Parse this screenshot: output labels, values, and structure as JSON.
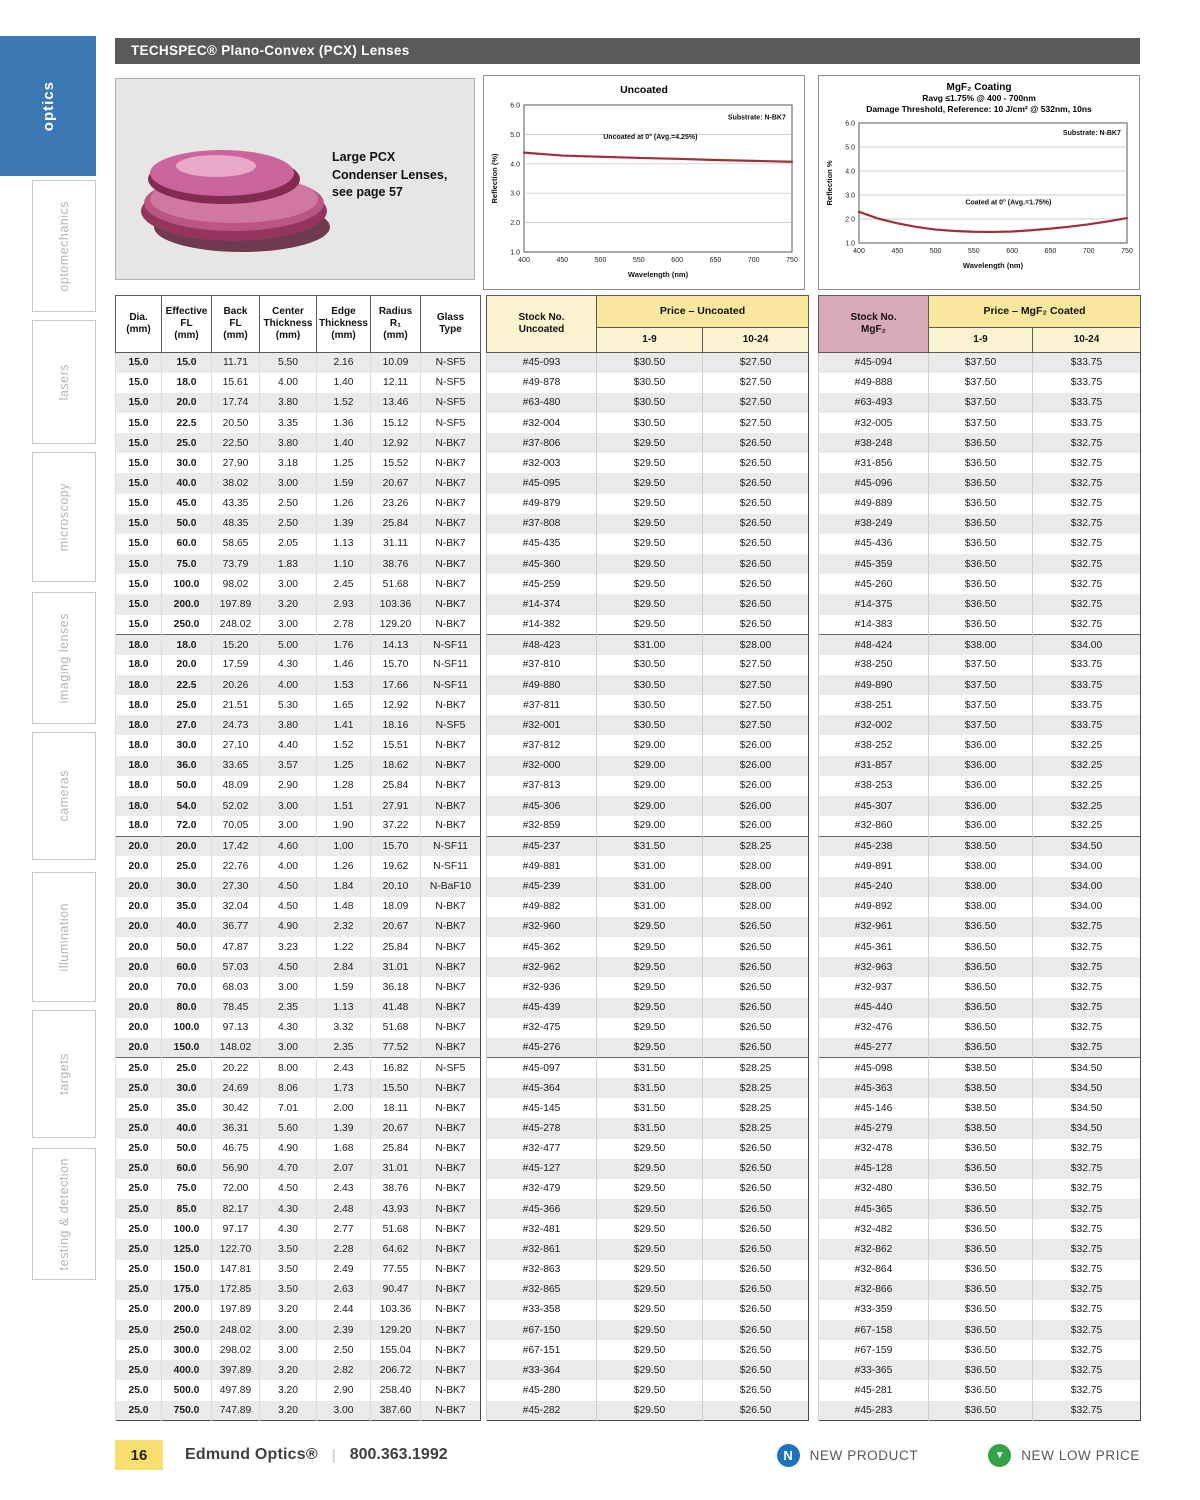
{
  "page": {
    "header_title": "TECHSPEC® Plano-Convex (PCX) Lenses"
  },
  "sidebar": {
    "items": [
      {
        "label": "optics"
      },
      {
        "label": "optomechanics"
      },
      {
        "label": "lasers"
      },
      {
        "label": "microscopy"
      },
      {
        "label": "imaging lenses"
      },
      {
        "label": "cameras"
      },
      {
        "label": "illumination"
      },
      {
        "label": "targets"
      },
      {
        "label": "testing & detection"
      }
    ]
  },
  "promo": {
    "caption": "Large PCX\nCondenser Lenses,\nsee page 57"
  },
  "chart_data": [
    {
      "type": "line",
      "title": "Uncoated",
      "xlabel": "Wavelength (nm)",
      "ylabel": "Reflection (%)",
      "xlim": [
        400,
        750
      ],
      "ylim": [
        1.0,
        6.0
      ],
      "xticks": [
        400,
        450,
        500,
        550,
        600,
        650,
        700,
        750
      ],
      "yticks": [
        1.0,
        2.0,
        3.0,
        4.0,
        5.0,
        6.0
      ],
      "grid": true,
      "line_color": "#9e3039",
      "annotations": [
        {
          "text": "Substrate: N-BK7",
          "x": 742,
          "y": 5.5,
          "anchor": "end"
        },
        {
          "text": "Uncoated at 0°  (Avg.=4.25%)",
          "x": 565,
          "y": 4.85,
          "anchor": "middle"
        }
      ],
      "series": [
        {
          "name": "Uncoated at 0°",
          "x": [
            400,
            450,
            500,
            550,
            600,
            650,
            700,
            750
          ],
          "y": [
            4.38,
            4.28,
            4.24,
            4.2,
            4.17,
            4.13,
            4.1,
            4.07
          ]
        }
      ]
    },
    {
      "type": "line",
      "title": "MgF₂ Coating",
      "subtitle1": "Ravg ≤1.75% @ 400 - 700nm",
      "subtitle2": "Damage Threshold, Reference: 10 J/cm² @ 532nm, 10ns",
      "xlabel": "Wavelength (nm)",
      "ylabel": "Reflection %",
      "xlim": [
        400,
        750
      ],
      "ylim": [
        1.0,
        6.0
      ],
      "xticks": [
        400,
        450,
        500,
        550,
        600,
        650,
        700,
        750
      ],
      "yticks": [
        1.0,
        2.0,
        3.0,
        4.0,
        5.0,
        6.0
      ],
      "grid": true,
      "line_color": "#9e3039",
      "annotations": [
        {
          "text": "Substrate: N-BK7",
          "x": 742,
          "y": 5.5,
          "anchor": "end"
        },
        {
          "text": "Coated at 0°  (Avg.=1.75%)",
          "x": 595,
          "y": 2.6,
          "anchor": "middle"
        }
      ],
      "series": [
        {
          "name": "Coated at 0°",
          "x": [
            400,
            425,
            450,
            475,
            500,
            525,
            550,
            575,
            600,
            625,
            650,
            675,
            700,
            725,
            750
          ],
          "y": [
            2.3,
            2.02,
            1.82,
            1.67,
            1.56,
            1.5,
            1.47,
            1.46,
            1.48,
            1.53,
            1.6,
            1.68,
            1.78,
            1.9,
            2.04
          ]
        }
      ]
    }
  ],
  "table": {
    "spec_headers": [
      "Dia.\n(mm)",
      "Effective\nFL\n(mm)",
      "Back\nFL\n(mm)",
      "Center\nThickness\n(mm)",
      "Edge\nThickness\n(mm)",
      "Radius\nR₁\n(mm)",
      "Glass\nType"
    ],
    "uncoated": {
      "stock_header": "Stock No.\nUncoated",
      "price_header": "Price – Uncoated",
      "qty_headers": [
        "1-9",
        "10-24"
      ]
    },
    "mgf2": {
      "stock_header": "Stock No.\nMgF₂",
      "price_header": "Price – MgF₂ Coated",
      "qty_headers": [
        "1-9",
        "10-24"
      ]
    },
    "group_start_indexes": [
      14,
      24,
      35
    ],
    "rows": [
      [
        "15.0",
        "15.0",
        "11.71",
        "5.50",
        "2.16",
        "10.09",
        "N-SF5",
        "#45-093",
        "$30.50",
        "$27.50",
        "#45-094",
        "$37.50",
        "$33.75"
      ],
      [
        "15.0",
        "18.0",
        "15.61",
        "4.00",
        "1.40",
        "12.11",
        "N-SF5",
        "#49-878",
        "$30.50",
        "$27.50",
        "#49-888",
        "$37.50",
        "$33.75"
      ],
      [
        "15.0",
        "20.0",
        "17.74",
        "3.80",
        "1.52",
        "13.46",
        "N-SF5",
        "#63-480",
        "$30.50",
        "$27.50",
        "#63-493",
        "$37.50",
        "$33.75"
      ],
      [
        "15.0",
        "22.5",
        "20.50",
        "3.35",
        "1.36",
        "15.12",
        "N-SF5",
        "#32-004",
        "$30.50",
        "$27.50",
        "#32-005",
        "$37.50",
        "$33.75"
      ],
      [
        "15.0",
        "25.0",
        "22.50",
        "3.80",
        "1.40",
        "12.92",
        "N-BK7",
        "#37-806",
        "$29.50",
        "$26.50",
        "#38-248",
        "$36.50",
        "$32.75"
      ],
      [
        "15.0",
        "30.0",
        "27.90",
        "3.18",
        "1.25",
        "15.52",
        "N-BK7",
        "#32-003",
        "$29.50",
        "$26.50",
        "#31-856",
        "$36.50",
        "$32.75"
      ],
      [
        "15.0",
        "40.0",
        "38.02",
        "3.00",
        "1.59",
        "20.67",
        "N-BK7",
        "#45-095",
        "$29.50",
        "$26.50",
        "#45-096",
        "$36.50",
        "$32.75"
      ],
      [
        "15.0",
        "45.0",
        "43.35",
        "2.50",
        "1.26",
        "23.26",
        "N-BK7",
        "#49-879",
        "$29.50",
        "$26.50",
        "#49-889",
        "$36.50",
        "$32.75"
      ],
      [
        "15.0",
        "50.0",
        "48.35",
        "2.50",
        "1.39",
        "25.84",
        "N-BK7",
        "#37-808",
        "$29.50",
        "$26.50",
        "#38-249",
        "$36.50",
        "$32.75"
      ],
      [
        "15.0",
        "60.0",
        "58.65",
        "2.05",
        "1.13",
        "31.11",
        "N-BK7",
        "#45-435",
        "$29.50",
        "$26.50",
        "#45-436",
        "$36.50",
        "$32.75"
      ],
      [
        "15.0",
        "75.0",
        "73.79",
        "1.83",
        "1.10",
        "38.76",
        "N-BK7",
        "#45-360",
        "$29.50",
        "$26.50",
        "#45-359",
        "$36.50",
        "$32.75"
      ],
      [
        "15.0",
        "100.0",
        "98.02",
        "3.00",
        "2.45",
        "51.68",
        "N-BK7",
        "#45-259",
        "$29.50",
        "$26.50",
        "#45-260",
        "$36.50",
        "$32.75"
      ],
      [
        "15.0",
        "200.0",
        "197.89",
        "3.20",
        "2.93",
        "103.36",
        "N-BK7",
        "#14-374",
        "$29.50",
        "$26.50",
        "#14-375",
        "$36.50",
        "$32.75"
      ],
      [
        "15.0",
        "250.0",
        "248.02",
        "3.00",
        "2.78",
        "129.20",
        "N-BK7",
        "#14-382",
        "$29.50",
        "$26.50",
        "#14-383",
        "$36.50",
        "$32.75"
      ],
      [
        "18.0",
        "18.0",
        "15.20",
        "5.00",
        "1.76",
        "14.13",
        "N-SF11",
        "#48-423",
        "$31.00",
        "$28.00",
        "#48-424",
        "$38.00",
        "$34.00"
      ],
      [
        "18.0",
        "20.0",
        "17.59",
        "4.30",
        "1.46",
        "15.70",
        "N-SF11",
        "#37-810",
        "$30.50",
        "$27.50",
        "#38-250",
        "$37.50",
        "$33.75"
      ],
      [
        "18.0",
        "22.5",
        "20.26",
        "4.00",
        "1.53",
        "17.66",
        "N-SF11",
        "#49-880",
        "$30.50",
        "$27.50",
        "#49-890",
        "$37.50",
        "$33.75"
      ],
      [
        "18.0",
        "25.0",
        "21.51",
        "5.30",
        "1.65",
        "12.92",
        "N-BK7",
        "#37-811",
        "$30.50",
        "$27.50",
        "#38-251",
        "$37.50",
        "$33.75"
      ],
      [
        "18.0",
        "27.0",
        "24.73",
        "3.80",
        "1.41",
        "18.16",
        "N-SF5",
        "#32-001",
        "$30.50",
        "$27.50",
        "#32-002",
        "$37.50",
        "$33.75"
      ],
      [
        "18.0",
        "30.0",
        "27.10",
        "4.40",
        "1.52",
        "15.51",
        "N-BK7",
        "#37-812",
        "$29.00",
        "$26.00",
        "#38-252",
        "$36.00",
        "$32.25"
      ],
      [
        "18.0",
        "36.0",
        "33.65",
        "3.57",
        "1.25",
        "18.62",
        "N-BK7",
        "#32-000",
        "$29.00",
        "$26.00",
        "#31-857",
        "$36.00",
        "$32.25"
      ],
      [
        "18.0",
        "50.0",
        "48.09",
        "2.90",
        "1.28",
        "25.84",
        "N-BK7",
        "#37-813",
        "$29.00",
        "$26.00",
        "#38-253",
        "$36.00",
        "$32.25"
      ],
      [
        "18.0",
        "54.0",
        "52.02",
        "3.00",
        "1.51",
        "27.91",
        "N-BK7",
        "#45-306",
        "$29.00",
        "$26.00",
        "#45-307",
        "$36.00",
        "$32.25"
      ],
      [
        "18.0",
        "72.0",
        "70.05",
        "3.00",
        "1.90",
        "37.22",
        "N-BK7",
        "#32-859",
        "$29.00",
        "$26.00",
        "#32-860",
        "$36.00",
        "$32.25"
      ],
      [
        "20.0",
        "20.0",
        "17.42",
        "4.60",
        "1.00",
        "15.70",
        "N-SF11",
        "#45-237",
        "$31.50",
        "$28.25",
        "#45-238",
        "$38.50",
        "$34.50"
      ],
      [
        "20.0",
        "25.0",
        "22.76",
        "4.00",
        "1.26",
        "19.62",
        "N-SF11",
        "#49-881",
        "$31.00",
        "$28.00",
        "#49-891",
        "$38.00",
        "$34.00"
      ],
      [
        "20.0",
        "30.0",
        "27.30",
        "4.50",
        "1.84",
        "20.10",
        "N-BaF10",
        "#45-239",
        "$31.00",
        "$28.00",
        "#45-240",
        "$38.00",
        "$34.00"
      ],
      [
        "20.0",
        "35.0",
        "32.04",
        "4.50",
        "1.48",
        "18.09",
        "N-BK7",
        "#49-882",
        "$31.00",
        "$28.00",
        "#49-892",
        "$38.00",
        "$34.00"
      ],
      [
        "20.0",
        "40.0",
        "36.77",
        "4.90",
        "2.32",
        "20.67",
        "N-BK7",
        "#32-960",
        "$29.50",
        "$26.50",
        "#32-961",
        "$36.50",
        "$32.75"
      ],
      [
        "20.0",
        "50.0",
        "47.87",
        "3.23",
        "1.22",
        "25.84",
        "N-BK7",
        "#45-362",
        "$29.50",
        "$26.50",
        "#45-361",
        "$36.50",
        "$32.75"
      ],
      [
        "20.0",
        "60.0",
        "57.03",
        "4.50",
        "2.84",
        "31.01",
        "N-BK7",
        "#32-962",
        "$29.50",
        "$26.50",
        "#32-963",
        "$36.50",
        "$32.75"
      ],
      [
        "20.0",
        "70.0",
        "68.03",
        "3.00",
        "1.59",
        "36.18",
        "N-BK7",
        "#32-936",
        "$29.50",
        "$26.50",
        "#32-937",
        "$36.50",
        "$32.75"
      ],
      [
        "20.0",
        "80.0",
        "78.45",
        "2.35",
        "1.13",
        "41.48",
        "N-BK7",
        "#45-439",
        "$29.50",
        "$26.50",
        "#45-440",
        "$36.50",
        "$32.75"
      ],
      [
        "20.0",
        "100.0",
        "97.13",
        "4.30",
        "3.32",
        "51.68",
        "N-BK7",
        "#32-475",
        "$29.50",
        "$26.50",
        "#32-476",
        "$36.50",
        "$32.75"
      ],
      [
        "20.0",
        "150.0",
        "148.02",
        "3.00",
        "2.35",
        "77.52",
        "N-BK7",
        "#45-276",
        "$29.50",
        "$26.50",
        "#45-277",
        "$36.50",
        "$32.75"
      ],
      [
        "25.0",
        "25.0",
        "20.22",
        "8.00",
        "2.43",
        "16.82",
        "N-SF5",
        "#45-097",
        "$31.50",
        "$28.25",
        "#45-098",
        "$38.50",
        "$34.50"
      ],
      [
        "25.0",
        "30.0",
        "24.69",
        "8.06",
        "1.73",
        "15.50",
        "N-BK7",
        "#45-364",
        "$31.50",
        "$28.25",
        "#45-363",
        "$38.50",
        "$34.50"
      ],
      [
        "25.0",
        "35.0",
        "30.42",
        "7.01",
        "2.00",
        "18.11",
        "N-BK7",
        "#45-145",
        "$31.50",
        "$28.25",
        "#45-146",
        "$38.50",
        "$34.50"
      ],
      [
        "25.0",
        "40.0",
        "36.31",
        "5.60",
        "1.39",
        "20.67",
        "N-BK7",
        "#45-278",
        "$31.50",
        "$28.25",
        "#45-279",
        "$38.50",
        "$34.50"
      ],
      [
        "25.0",
        "50.0",
        "46.75",
        "4.90",
        "1.68",
        "25.84",
        "N-BK7",
        "#32-477",
        "$29.50",
        "$26.50",
        "#32-478",
        "$36.50",
        "$32.75"
      ],
      [
        "25.0",
        "60.0",
        "56.90",
        "4.70",
        "2.07",
        "31.01",
        "N-BK7",
        "#45-127",
        "$29.50",
        "$26.50",
        "#45-128",
        "$36.50",
        "$32.75"
      ],
      [
        "25.0",
        "75.0",
        "72.00",
        "4.50",
        "2.43",
        "38.76",
        "N-BK7",
        "#32-479",
        "$29.50",
        "$26.50",
        "#32-480",
        "$36.50",
        "$32.75"
      ],
      [
        "25.0",
        "85.0",
        "82.17",
        "4.30",
        "2.48",
        "43.93",
        "N-BK7",
        "#45-366",
        "$29.50",
        "$26.50",
        "#45-365",
        "$36.50",
        "$32.75"
      ],
      [
        "25.0",
        "100.0",
        "97.17",
        "4.30",
        "2.77",
        "51.68",
        "N-BK7",
        "#32-481",
        "$29.50",
        "$26.50",
        "#32-482",
        "$36.50",
        "$32.75"
      ],
      [
        "25.0",
        "125.0",
        "122.70",
        "3.50",
        "2.28",
        "64.62",
        "N-BK7",
        "#32-861",
        "$29.50",
        "$26.50",
        "#32-862",
        "$36.50",
        "$32.75"
      ],
      [
        "25.0",
        "150.0",
        "147.81",
        "3.50",
        "2.49",
        "77.55",
        "N-BK7",
        "#32-863",
        "$29.50",
        "$26.50",
        "#32-864",
        "$36.50",
        "$32.75"
      ],
      [
        "25.0",
        "175.0",
        "172.85",
        "3.50",
        "2.63",
        "90.47",
        "N-BK7",
        "#32-865",
        "$29.50",
        "$26.50",
        "#32-866",
        "$36.50",
        "$32.75"
      ],
      [
        "25.0",
        "200.0",
        "197.89",
        "3.20",
        "2.44",
        "103.36",
        "N-BK7",
        "#33-358",
        "$29.50",
        "$26.50",
        "#33-359",
        "$36.50",
        "$32.75"
      ],
      [
        "25.0",
        "250.0",
        "248.02",
        "3.00",
        "2.39",
        "129.20",
        "N-BK7",
        "#67-150",
        "$29.50",
        "$26.50",
        "#67-158",
        "$36.50",
        "$32.75"
      ],
      [
        "25.0",
        "300.0",
        "298.02",
        "3.00",
        "2.50",
        "155.04",
        "N-BK7",
        "#67-151",
        "$29.50",
        "$26.50",
        "#67-159",
        "$36.50",
        "$32.75"
      ],
      [
        "25.0",
        "400.0",
        "397.89",
        "3.20",
        "2.82",
        "206.72",
        "N-BK7",
        "#33-364",
        "$29.50",
        "$26.50",
        "#33-365",
        "$36.50",
        "$32.75"
      ],
      [
        "25.0",
        "500.0",
        "497.89",
        "3.20",
        "2.90",
        "258.40",
        "N-BK7",
        "#45-280",
        "$29.50",
        "$26.50",
        "#45-281",
        "$36.50",
        "$32.75"
      ],
      [
        "25.0",
        "750.0",
        "747.89",
        "3.20",
        "3.00",
        "387.60",
        "N-BK7",
        "#45-282",
        "$29.50",
        "$26.50",
        "#45-283",
        "$36.50",
        "$32.75"
      ]
    ]
  },
  "footer": {
    "page_number": "16",
    "brand": "Edmund Optics®",
    "divider": "|",
    "phone": "800.363.1992",
    "new_product_badge": "N",
    "new_product_label": "NEW PRODUCT",
    "new_low_price_label": "NEW LOW PRICE"
  }
}
